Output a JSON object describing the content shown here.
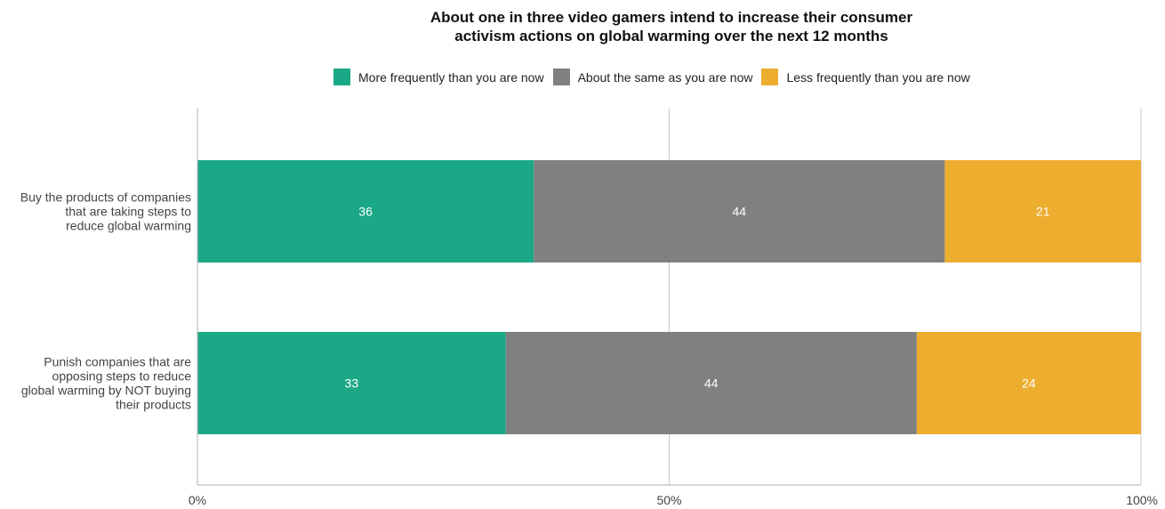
{
  "chart_data": {
    "type": "bar",
    "orientation": "horizontal",
    "stacked": true,
    "title": [
      "About one in three video gamers intend to increase their consumer",
      "activism actions on global warming over the next 12 months"
    ],
    "categories": [
      [
        "Buy the products of companies",
        "that are taking steps to",
        "reduce global warming"
      ],
      [
        "Punish companies that are",
        "opposing steps to reduce",
        "global warming by NOT buying",
        "their products"
      ]
    ],
    "series": [
      {
        "name": "More frequently than you are now",
        "color": "#1ba886",
        "values": [
          36,
          33
        ]
      },
      {
        "name": "About the same as you are now",
        "color": "#808080",
        "values": [
          44,
          44
        ]
      },
      {
        "name": "Less frequently than you are now",
        "color": "#edae2f",
        "values": [
          21,
          24
        ]
      }
    ],
    "xlim": [
      0,
      100
    ],
    "x_ticks": [
      {
        "value": 0,
        "label": "0%"
      },
      {
        "value": 50,
        "label": "50%"
      },
      {
        "value": 100,
        "label": "100%"
      }
    ],
    "grid": true,
    "legend_position": "top"
  }
}
